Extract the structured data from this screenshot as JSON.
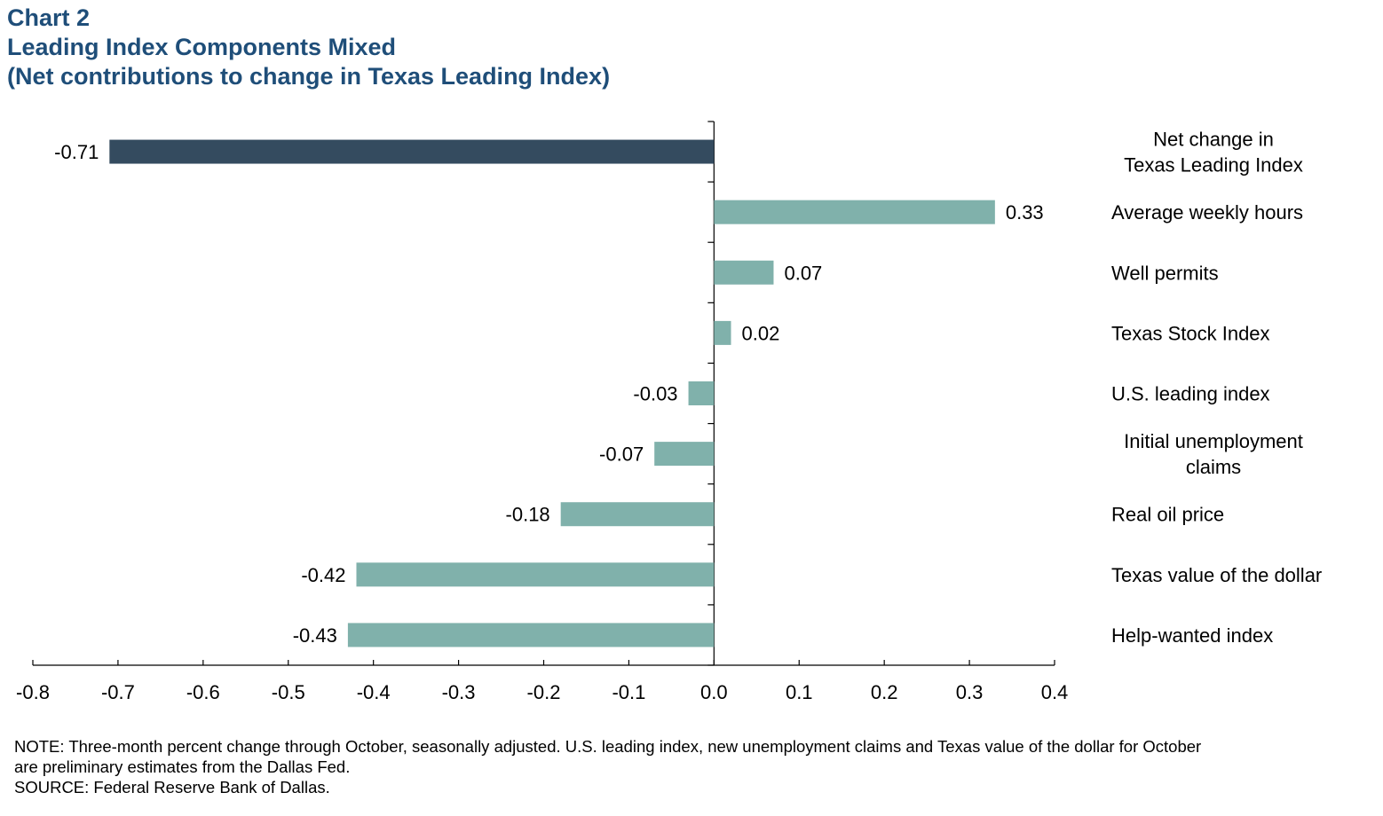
{
  "header": {
    "chart_number": "Chart 2",
    "title": "Leading Index Components Mixed",
    "subtitle": "(Net contributions to change in Texas Leading Index)"
  },
  "chart_data": {
    "type": "bar",
    "orientation": "horizontal",
    "categories": [
      "Net change in Texas Leading Index",
      "Average weekly hours",
      "Well permits",
      "Texas Stock Index",
      "U.S. leading index",
      "Initial unemployment claims",
      "Real oil price",
      "Texas value of the dollar",
      "Help-wanted index"
    ],
    "category_label_lines": [
      [
        "Net change in",
        "Texas Leading Index"
      ],
      [
        "Average weekly hours"
      ],
      [
        "Well permits"
      ],
      [
        "Texas Stock Index"
      ],
      [
        "U.S. leading index"
      ],
      [
        "Initial unemployment",
        "claims"
      ],
      [
        "Real oil price"
      ],
      [
        "Texas value of the dollar"
      ],
      [
        "Help-wanted index"
      ]
    ],
    "values": [
      -0.71,
      0.33,
      0.07,
      0.02,
      -0.03,
      -0.07,
      -0.18,
      -0.42,
      -0.43
    ],
    "value_labels": [
      "-0.71",
      "0.33",
      "0.07",
      "0.02",
      "-0.03",
      "-0.07",
      "-0.18",
      "-0.42",
      "-0.43"
    ],
    "xlim": [
      -0.8,
      0.4
    ],
    "xticks": [
      -0.8,
      -0.7,
      -0.6,
      -0.5,
      -0.4,
      -0.3,
      -0.2,
      -0.1,
      0.0,
      0.1,
      0.2,
      0.3,
      0.4
    ],
    "xtick_labels": [
      "-0.8",
      "-0.7",
      "-0.6",
      "-0.5",
      "-0.4",
      "-0.3",
      "-0.2",
      "-0.1",
      "0.0",
      "0.1",
      "0.2",
      "0.3",
      "0.4"
    ],
    "colors": {
      "highlight": "#344b5f",
      "bar": "#80b1ab"
    },
    "grid": false,
    "legend": "none"
  },
  "footer": {
    "note_line1": "NOTE: Three-month percent change through October, seasonally adjusted. U.S. leading index, new unemployment  claims and Texas value of the dollar for October",
    "note_line2": "are preliminary estimates from the Dallas Fed.",
    "source": "SOURCE: Federal Reserve Bank of Dallas."
  }
}
